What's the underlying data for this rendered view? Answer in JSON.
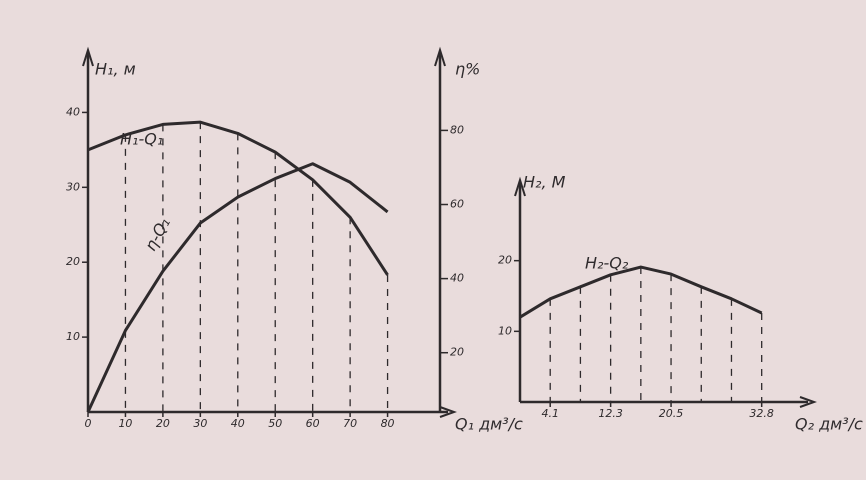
{
  "chart_data": [
    {
      "type": "line",
      "x_label": "Q₁ дм³/с",
      "y_label": "H₁, м",
      "y2_label": "η%",
      "x": [
        0,
        10,
        20,
        30,
        40,
        50,
        60,
        70,
        80
      ],
      "series": [
        {
          "name": "H₁-Q₁",
          "color": "#2e2a2c",
          "values": [
            35,
            37,
            38.4,
            38.7,
            37.2,
            34.7,
            31,
            26,
            18.3
          ],
          "drop_lines": true
        },
        {
          "name": "η-Q₁",
          "color": "#2e2a2c",
          "axis": "y2",
          "values": [
            4,
            26,
            42,
            55,
            62,
            67,
            71,
            66,
            58
          ]
        }
      ],
      "xlim": [
        0,
        94
      ],
      "xticks": [
        0,
        10,
        20,
        30,
        40,
        50,
        60,
        70,
        80
      ],
      "ylim": [
        0,
        47
      ],
      "yticks": [
        10,
        20,
        30,
        40
      ],
      "y2lim": [
        4,
        99
      ],
      "y2ticks": [
        20,
        40,
        60,
        80
      ]
    },
    {
      "type": "line",
      "x_label": "Q₂ дм³/с",
      "y_label": "H₂, М",
      "x": [
        0,
        4.1,
        8.2,
        12.3,
        16.4,
        20.5,
        24.6,
        28.7,
        32.8
      ],
      "series": [
        {
          "name": "H₂-Q₂",
          "color": "#2e2a2c",
          "values": [
            12,
            14.6,
            16.3,
            18,
            19.1,
            18.1,
            16.3,
            14.6,
            12.6
          ],
          "drop_lines": true
        }
      ],
      "xlim": [
        0,
        38
      ],
      "xticks": [
        4.1,
        12.3,
        20.5,
        32.8
      ],
      "ylim": [
        0,
        30
      ],
      "yticks": [
        10,
        20
      ]
    }
  ]
}
